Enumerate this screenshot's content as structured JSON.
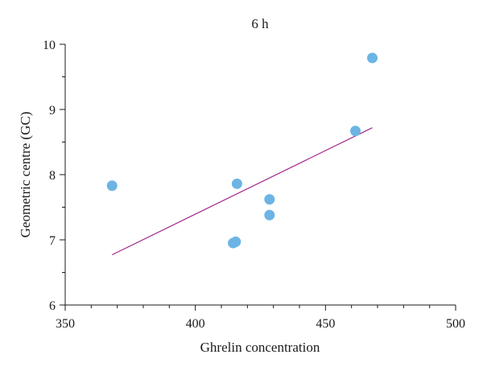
{
  "chart_data": {
    "type": "scatter",
    "title": "6 h",
    "xlabel": "Ghrelin concentration",
    "ylabel": "Geometric centre (GC)",
    "xlim": [
      350,
      500
    ],
    "ylim": [
      6,
      10
    ],
    "x_ticks": [
      350,
      400,
      450,
      500
    ],
    "y_ticks": [
      6,
      7,
      8,
      9,
      10
    ],
    "grid": false,
    "colors": {
      "points": "#6cb4e4",
      "trendline": "#a0288c",
      "axes": "#1a1a1a"
    },
    "series": [
      {
        "points": [
          {
            "x": 368,
            "y": 7.83
          },
          {
            "x": 414.5,
            "y": 6.95
          },
          {
            "x": 415.5,
            "y": 6.97
          },
          {
            "x": 416,
            "y": 7.86
          },
          {
            "x": 428.5,
            "y": 7.62
          },
          {
            "x": 428.5,
            "y": 7.38
          },
          {
            "x": 461.5,
            "y": 8.67
          },
          {
            "x": 468,
            "y": 9.79
          }
        ]
      }
    ],
    "trendline": {
      "x": [
        368,
        468
      ],
      "y": [
        6.77,
        8.72
      ]
    }
  }
}
